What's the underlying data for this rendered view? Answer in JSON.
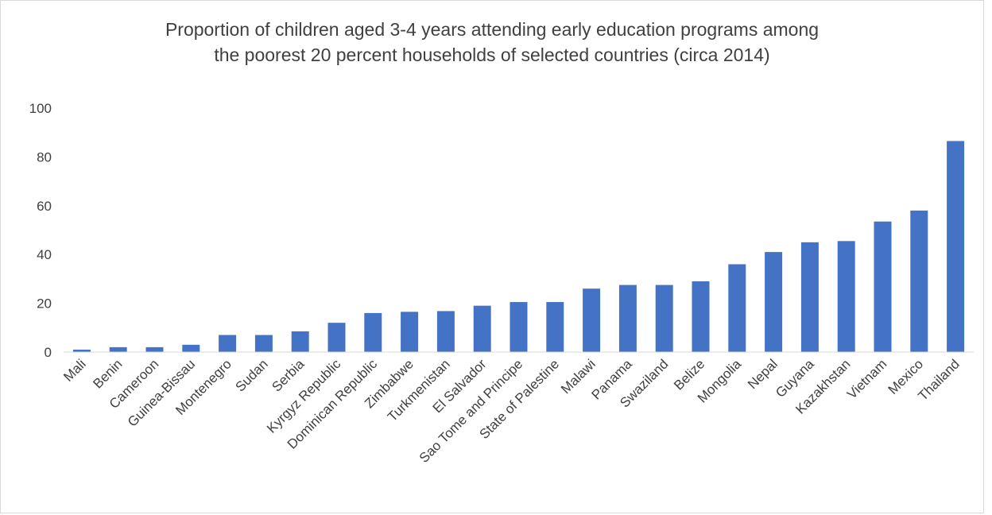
{
  "chart_data": {
    "type": "bar",
    "title": [
      "Proportion of children aged 3-4 years attending early education programs among",
      "the poorest 20 percent households of selected countries (circa 2014)"
    ],
    "xlabel": "",
    "ylabel": "",
    "ylim": [
      0,
      100
    ],
    "yticks": [
      "0",
      "20",
      "40",
      "60",
      "80",
      "100"
    ],
    "grid": false,
    "legend": "none",
    "bar_color": "#4472c4",
    "categories": [
      "Mali",
      "Benin",
      "Cameroon",
      "Guinea-Bissau",
      "Montenegro",
      "Sudan",
      "Serbia",
      "Kyrgyz Republic",
      "Dominican Republic",
      "Zimbabwe",
      "Turkmenistan",
      "El Salvador",
      "Sao Tome and Principe",
      "State of Palestine",
      "Malawi",
      "Panama",
      "Swaziland",
      "Belize",
      "Mongolia",
      "Nepal",
      "Guyana",
      "Kazakhstan",
      "Vietnam",
      "Mexico",
      "Thailand"
    ],
    "values": [
      1,
      2,
      2,
      3,
      7,
      7,
      8.5,
      12,
      16,
      16.5,
      16.8,
      19,
      20.5,
      20.5,
      26,
      27.5,
      27.5,
      29,
      36,
      41,
      45,
      45.5,
      53.5,
      58,
      86.5
    ]
  }
}
